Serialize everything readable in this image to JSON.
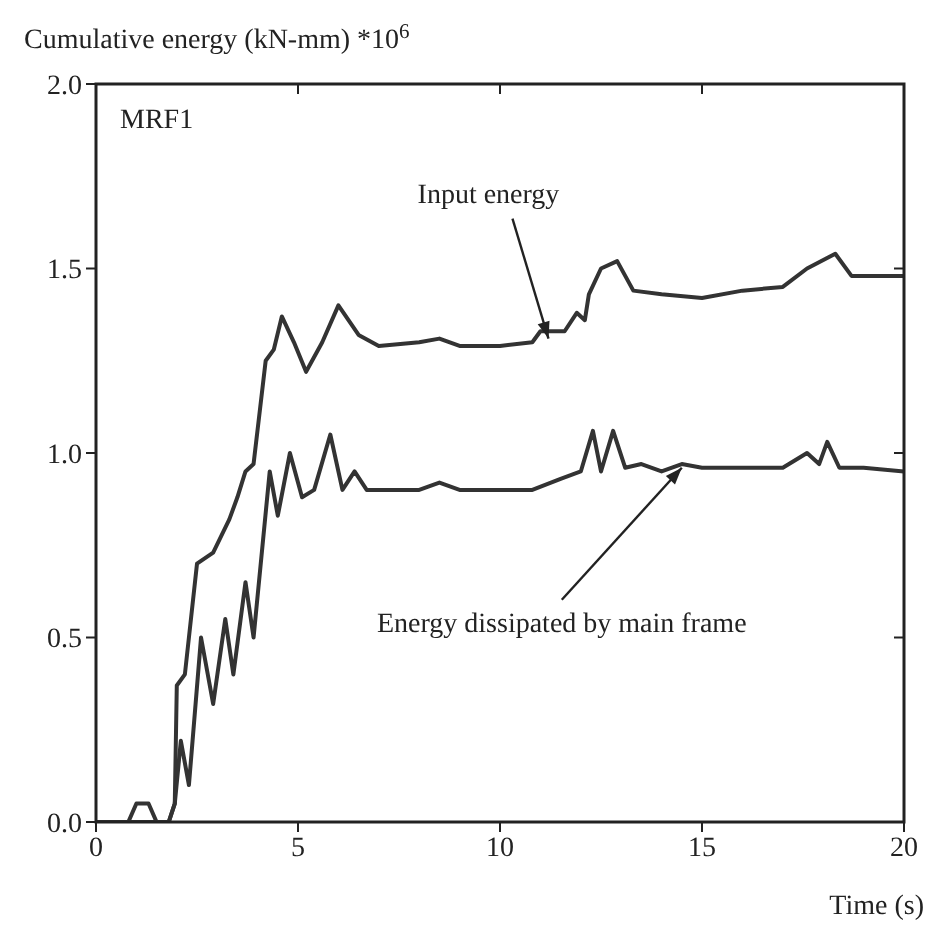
{
  "chart_data": {
    "type": "line",
    "ylabel": "Cumulative energy (kN-mm) *10$^{6}$",
    "xlabel": "Time (s)",
    "annotations": [
      "MRF1",
      {
        "text": "Input energy",
        "x": 11.2,
        "y": 1.31
      },
      {
        "text": "Energy dissipated by main frame",
        "x": 14.5,
        "y": 0.96
      }
    ],
    "xlim": [
      0,
      20
    ],
    "xticks": [
      0,
      5,
      10,
      15,
      20
    ],
    "ylim": [
      0,
      2
    ],
    "yticks": [
      {
        "value": 0,
        "label": "0.0"
      },
      0.5,
      {
        "value": 1,
        "label": "1.0"
      },
      1.5,
      {
        "value": 2,
        "label": "2.0"
      }
    ],
    "grid": false,
    "legend": false,
    "marker": "none",
    "line_style": "solid",
    "series": [
      {
        "color": "#333333",
        "x": [
          0,
          0.8,
          1.0,
          1.3,
          1.5,
          1.8,
          1.95,
          2.0,
          2.2,
          2.5,
          2.9,
          3.3,
          3.5,
          3.7,
          3.9,
          4.2,
          4.4,
          4.6,
          4.9,
          5.2,
          5.6,
          6.0,
          6.5,
          7.0,
          8.0,
          8.5,
          9.0,
          10.0,
          10.8,
          11.0,
          11.6,
          11.9,
          12.1,
          12.2,
          12.5,
          12.9,
          13.3,
          14.0,
          15.0,
          16.0,
          17.0,
          17.6,
          18.3,
          18.7,
          20.0
        ],
        "values": [
          0,
          0,
          0.05,
          0.05,
          0,
          0,
          0.05,
          0.37,
          0.4,
          0.7,
          0.73,
          0.82,
          0.88,
          0.95,
          0.97,
          1.25,
          1.28,
          1.37,
          1.3,
          1.22,
          1.3,
          1.4,
          1.32,
          1.29,
          1.3,
          1.31,
          1.29,
          1.29,
          1.3,
          1.33,
          1.33,
          1.38,
          1.36,
          1.43,
          1.5,
          1.52,
          1.44,
          1.43,
          1.42,
          1.44,
          1.45,
          1.5,
          1.54,
          1.48,
          1.48
        ]
      },
      {
        "color": "#333333",
        "x": [
          0,
          1.8,
          1.95,
          2.1,
          2.3,
          2.6,
          2.9,
          3.2,
          3.4,
          3.7,
          3.9,
          4.3,
          4.5,
          4.8,
          5.1,
          5.4,
          5.8,
          6.1,
          6.4,
          6.7,
          8.0,
          8.5,
          9.0,
          10.8,
          11.5,
          12.0,
          12.3,
          12.5,
          12.8,
          13.1,
          13.5,
          14.0,
          14.5,
          15.0,
          16.0,
          17.0,
          17.6,
          17.9,
          18.1,
          18.4,
          19.0,
          20.0
        ],
        "values": [
          0,
          0,
          0.05,
          0.22,
          0.1,
          0.5,
          0.32,
          0.55,
          0.4,
          0.65,
          0.5,
          0.95,
          0.83,
          1.0,
          0.88,
          0.9,
          1.05,
          0.9,
          0.95,
          0.9,
          0.9,
          0.92,
          0.9,
          0.9,
          0.93,
          0.95,
          1.06,
          0.95,
          1.06,
          0.96,
          0.97,
          0.95,
          0.97,
          0.96,
          0.96,
          0.96,
          1.0,
          0.97,
          1.03,
          0.96,
          0.96,
          0.95
        ]
      }
    ]
  }
}
